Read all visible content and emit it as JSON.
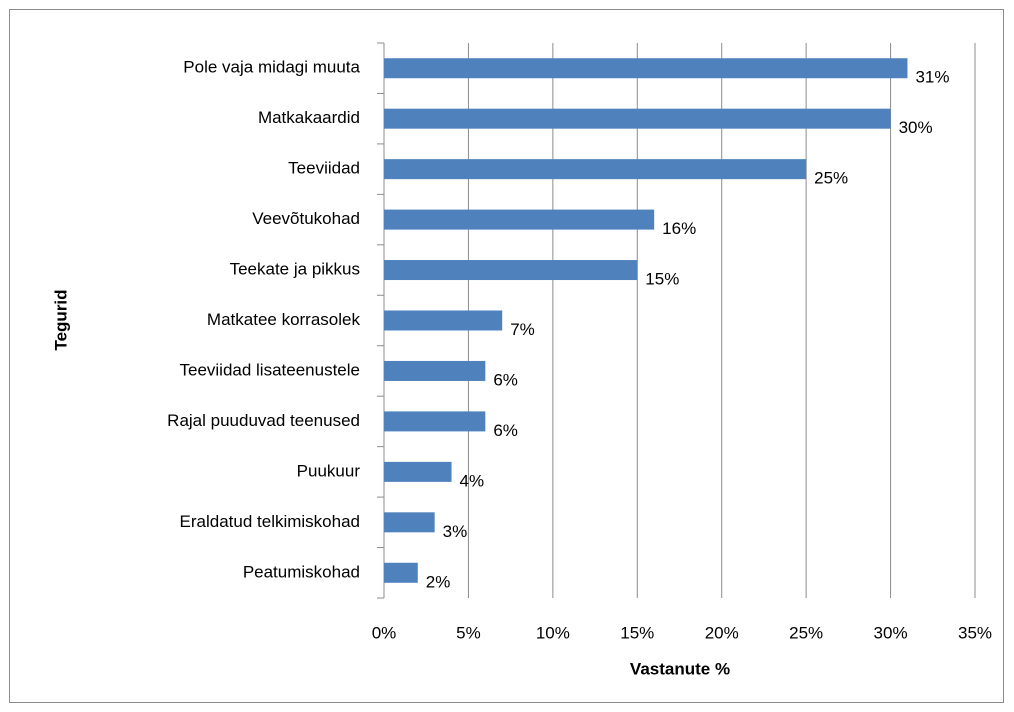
{
  "chart_data": {
    "type": "bar",
    "orientation": "horizontal",
    "categories": [
      "Pole vaja midagi muuta",
      "Matkakaardid",
      "Teeviidad",
      "Veevõtukohad",
      "Teekate ja pikkus",
      "Matkatee korrasolek",
      "Teeviidad lisateenustele",
      "Rajal puuduvad teenused",
      "Puukuur",
      "Eraldatud telkimiskohad",
      "Peatumiskohad"
    ],
    "values": [
      31,
      30,
      25,
      16,
      15,
      7,
      6,
      6,
      4,
      3,
      2
    ],
    "value_labels": [
      "31%",
      "30%",
      "25%",
      "16%",
      "15%",
      "7%",
      "6%",
      "6%",
      "4%",
      "3%",
      "2%"
    ],
    "color": "#4f81bd",
    "xlim": [
      0,
      35
    ],
    "xticks": [
      {
        "value": 0,
        "label": "0%"
      },
      {
        "value": 5,
        "label": "5%"
      },
      {
        "value": 10,
        "label": "10%"
      },
      {
        "value": 15,
        "label": "15%"
      },
      {
        "value": 20,
        "label": "20%"
      },
      {
        "value": 25,
        "label": "25%"
      },
      {
        "value": 30,
        "label": "30%"
      },
      {
        "value": 35,
        "label": "35%"
      }
    ],
    "grid": true,
    "x_label": "Vastanute %",
    "y_label": "Tegurid"
  }
}
